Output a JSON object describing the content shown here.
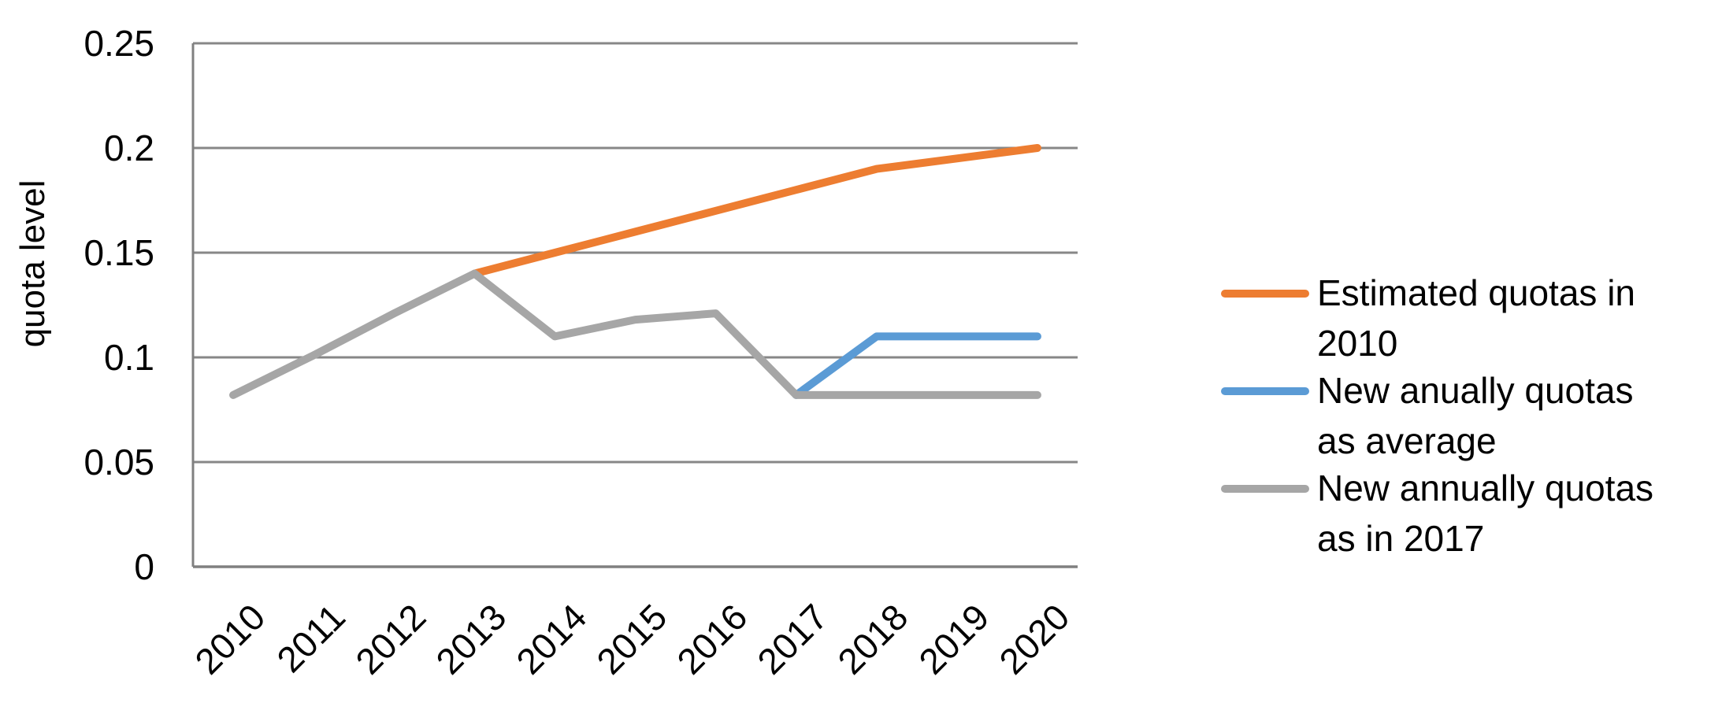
{
  "chart_data": {
    "type": "line",
    "categories": [
      "2010",
      "2011",
      "2012",
      "2013",
      "2014",
      "2015",
      "2016",
      "2017",
      "2018",
      "2019",
      "2020"
    ],
    "series": [
      {
        "name": "Estimated quotas in 2010",
        "color": "#ED7D31",
        "legend_lines": [
          "Estimated quotas in",
          "2010"
        ],
        "values": [
          null,
          null,
          null,
          0.14,
          0.15,
          0.16,
          0.17,
          0.18,
          0.19,
          0.195,
          0.2
        ]
      },
      {
        "name": "New anually quotas as average",
        "color": "#5B9BD5",
        "legend_lines": [
          "New anually quotas",
          "as average"
        ],
        "values": [
          null,
          null,
          null,
          null,
          null,
          null,
          null,
          0.082,
          0.11,
          0.11,
          0.11
        ]
      },
      {
        "name": "New annually quotas as in 2017",
        "color": "#A6A6A6",
        "legend_lines": [
          "New annually quotas",
          "as in 2017"
        ],
        "values": [
          0.082,
          0.101,
          0.121,
          0.14,
          0.11,
          0.118,
          0.121,
          0.082,
          0.082,
          0.082,
          0.082
        ]
      }
    ],
    "title": "",
    "xlabel": "",
    "ylabel": "quota level",
    "ylim": [
      0,
      0.25
    ],
    "yticks": [
      {
        "value": 0,
        "label": "0"
      },
      {
        "value": 0.05,
        "label": "0.05"
      },
      {
        "value": 0.1,
        "label": "0.1"
      },
      {
        "value": 0.15,
        "label": "0.15"
      },
      {
        "value": 0.2,
        "label": "0.2"
      },
      {
        "value": 0.25,
        "label": "0.25"
      }
    ],
    "grid": true,
    "legend_position": "right"
  },
  "colors": {
    "background": "#FFFFFF",
    "gridline": "#878787",
    "axis": "#808080",
    "text": "#000000"
  }
}
